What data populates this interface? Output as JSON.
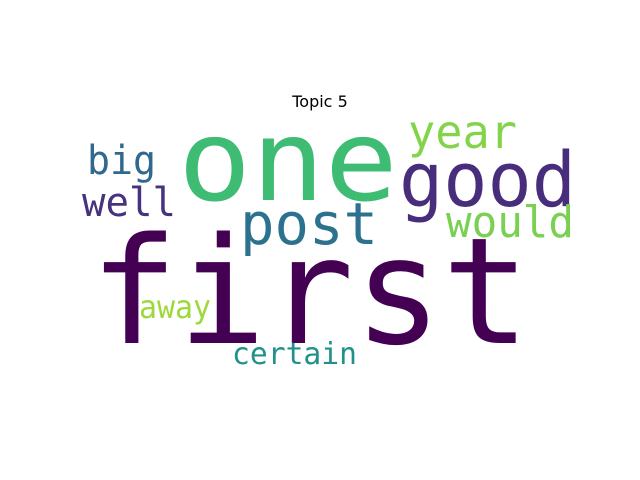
{
  "title": "Topic 5",
  "words": [
    {
      "text": "first",
      "color": "#440154"
    },
    {
      "text": "one",
      "color": "#3fbc73"
    },
    {
      "text": "good",
      "color": "#472d7b"
    },
    {
      "text": "post",
      "color": "#2c728e"
    },
    {
      "text": "year",
      "color": "#84d44b"
    },
    {
      "text": "would",
      "color": "#7ad151"
    },
    {
      "text": "big",
      "color": "#31688e"
    },
    {
      "text": "well",
      "color": "#46327e"
    },
    {
      "text": "away",
      "color": "#9dd93b"
    },
    {
      "text": "certain",
      "color": "#21918c"
    }
  ]
}
